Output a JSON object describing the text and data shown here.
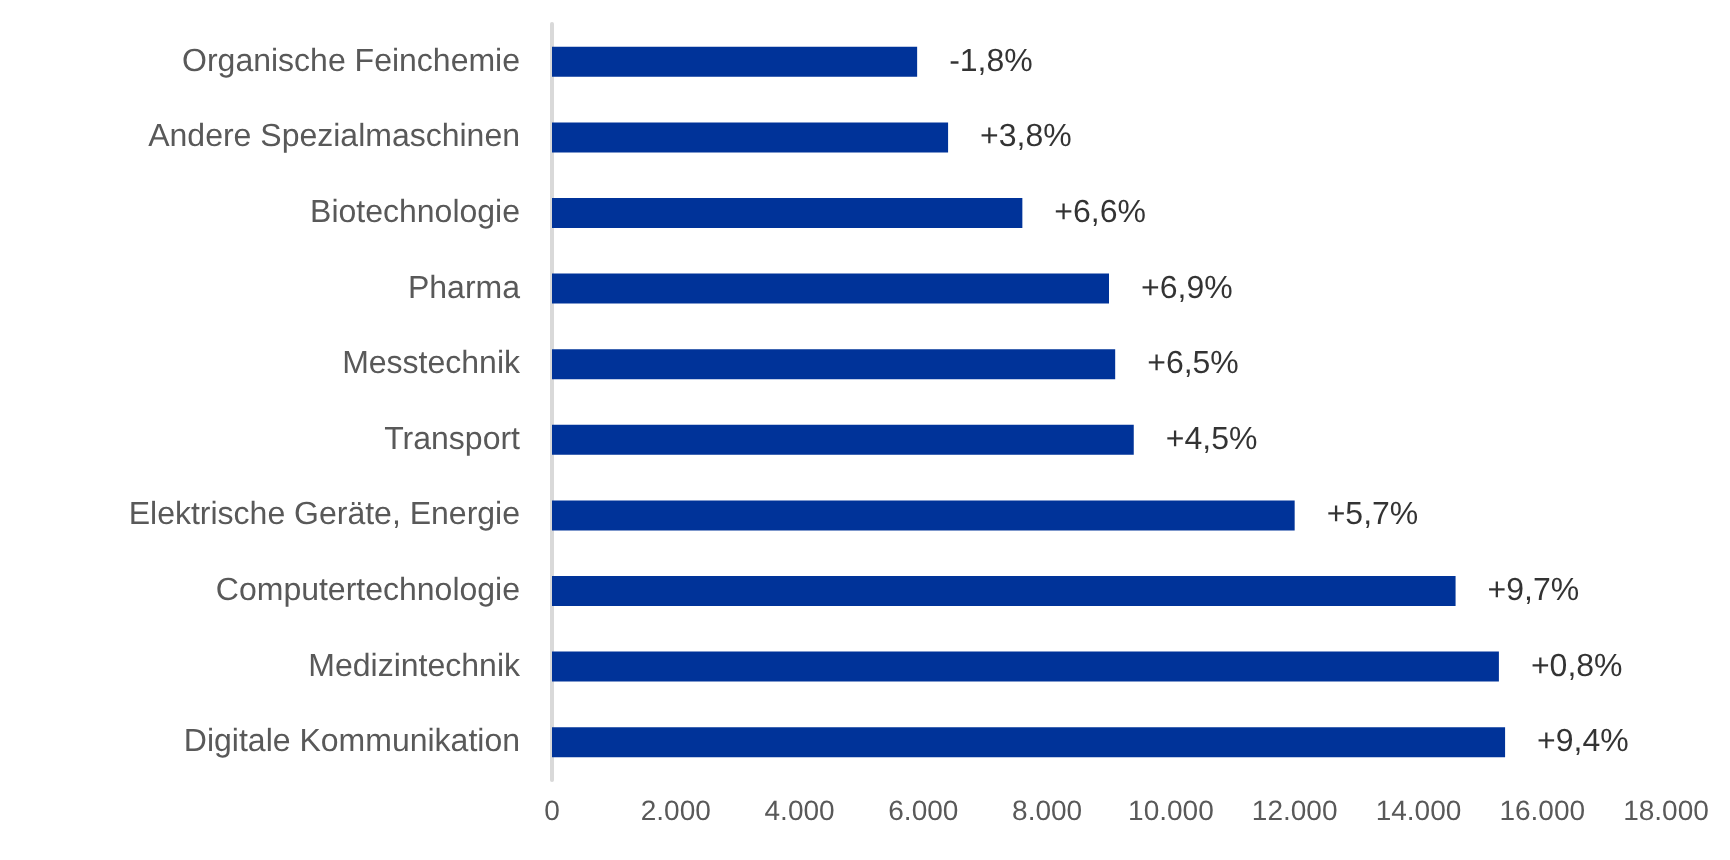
{
  "chart_data": {
    "type": "bar",
    "orientation": "horizontal",
    "categories": [
      "Organische Feinchemie",
      "Andere Spezialmaschinen",
      "Biotechnologie",
      "Pharma",
      "Messtechnik",
      "Transport",
      "Elektrische Geräte, Energie",
      "Computertechnologie",
      "Medizintechnik",
      "Digitale Kommunikation"
    ],
    "values": [
      5900,
      6400,
      7600,
      9000,
      9100,
      9400,
      12000,
      14600,
      15300,
      15400
    ],
    "color": "#003399",
    "xlim": [
      0,
      18000
    ],
    "xticks": [
      {
        "value": 0,
        "label": "0"
      },
      {
        "value": 2000,
        "label": "2.000"
      },
      {
        "value": 4000,
        "label": "4.000"
      },
      {
        "value": 6000,
        "label": "6.000"
      },
      {
        "value": 8000,
        "label": "8.000"
      },
      {
        "value": 10000,
        "label": "10.000"
      },
      {
        "value": 12000,
        "label": "12.000"
      },
      {
        "value": 14000,
        "label": "14.000"
      },
      {
        "value": 16000,
        "label": "16.000"
      },
      {
        "value": 18000,
        "label": "18.000"
      }
    ],
    "annotations": [
      {
        "text": "-1,8%",
        "x": 5900,
        "y": "Organische Feinchemie"
      },
      {
        "text": "+3,8%",
        "x": 6400,
        "y": "Andere Spezialmaschinen"
      },
      {
        "text": "+6,6%",
        "x": 7600,
        "y": "Biotechnologie"
      },
      {
        "text": "+6,9%",
        "x": 9000,
        "y": "Pharma"
      },
      {
        "text": "+6,5%",
        "x": 9100,
        "y": "Messtechnik"
      },
      {
        "text": "+4,5%",
        "x": 9400,
        "y": "Transport"
      },
      {
        "text": "+5,7%",
        "x": 12000,
        "y": "Elektrische Geräte, Energie"
      },
      {
        "text": "+9,7%",
        "x": 14600,
        "y": "Computertechnologie"
      },
      {
        "text": "+0,8%",
        "x": 15300,
        "y": "Medizintechnik"
      },
      {
        "text": "+9,4%",
        "x": 15400,
        "y": "Digitale Kommunikation"
      }
    ]
  }
}
